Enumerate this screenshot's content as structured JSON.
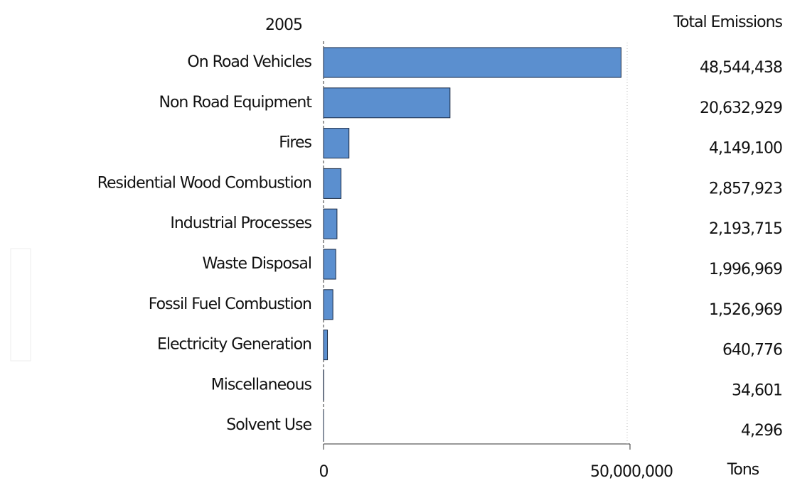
{
  "chart_data": {
    "type": "barh",
    "title": "2005",
    "value_header": "Total Emissions",
    "xlabel": "Tons",
    "categories": [
      "On Road Vehicles",
      "Non Road Equipment",
      "Fires",
      "Residential Wood Combustion",
      "Industrial Processes",
      "Waste Disposal",
      "Fossil Fuel Combustion",
      "Electricity Generation",
      "Miscellaneous",
      "Solvent Use"
    ],
    "values": [
      48544438,
      20632929,
      4149100,
      2857923,
      2193715,
      1996969,
      1526969,
      640776,
      34601,
      4296
    ],
    "value_labels": [
      "48,544,438",
      "20,632,929",
      "4,149,100",
      "2,857,923",
      "2,193,715",
      "1,996,969",
      "1,526,969",
      "640,776",
      "34,601",
      "4,296"
    ],
    "color": "#5b8fcf",
    "xlim": [
      0,
      50000000
    ],
    "xticks": [
      0,
      {
        "value": 50000000,
        "label": "50,000,000"
      }
    ],
    "grid": true
  }
}
